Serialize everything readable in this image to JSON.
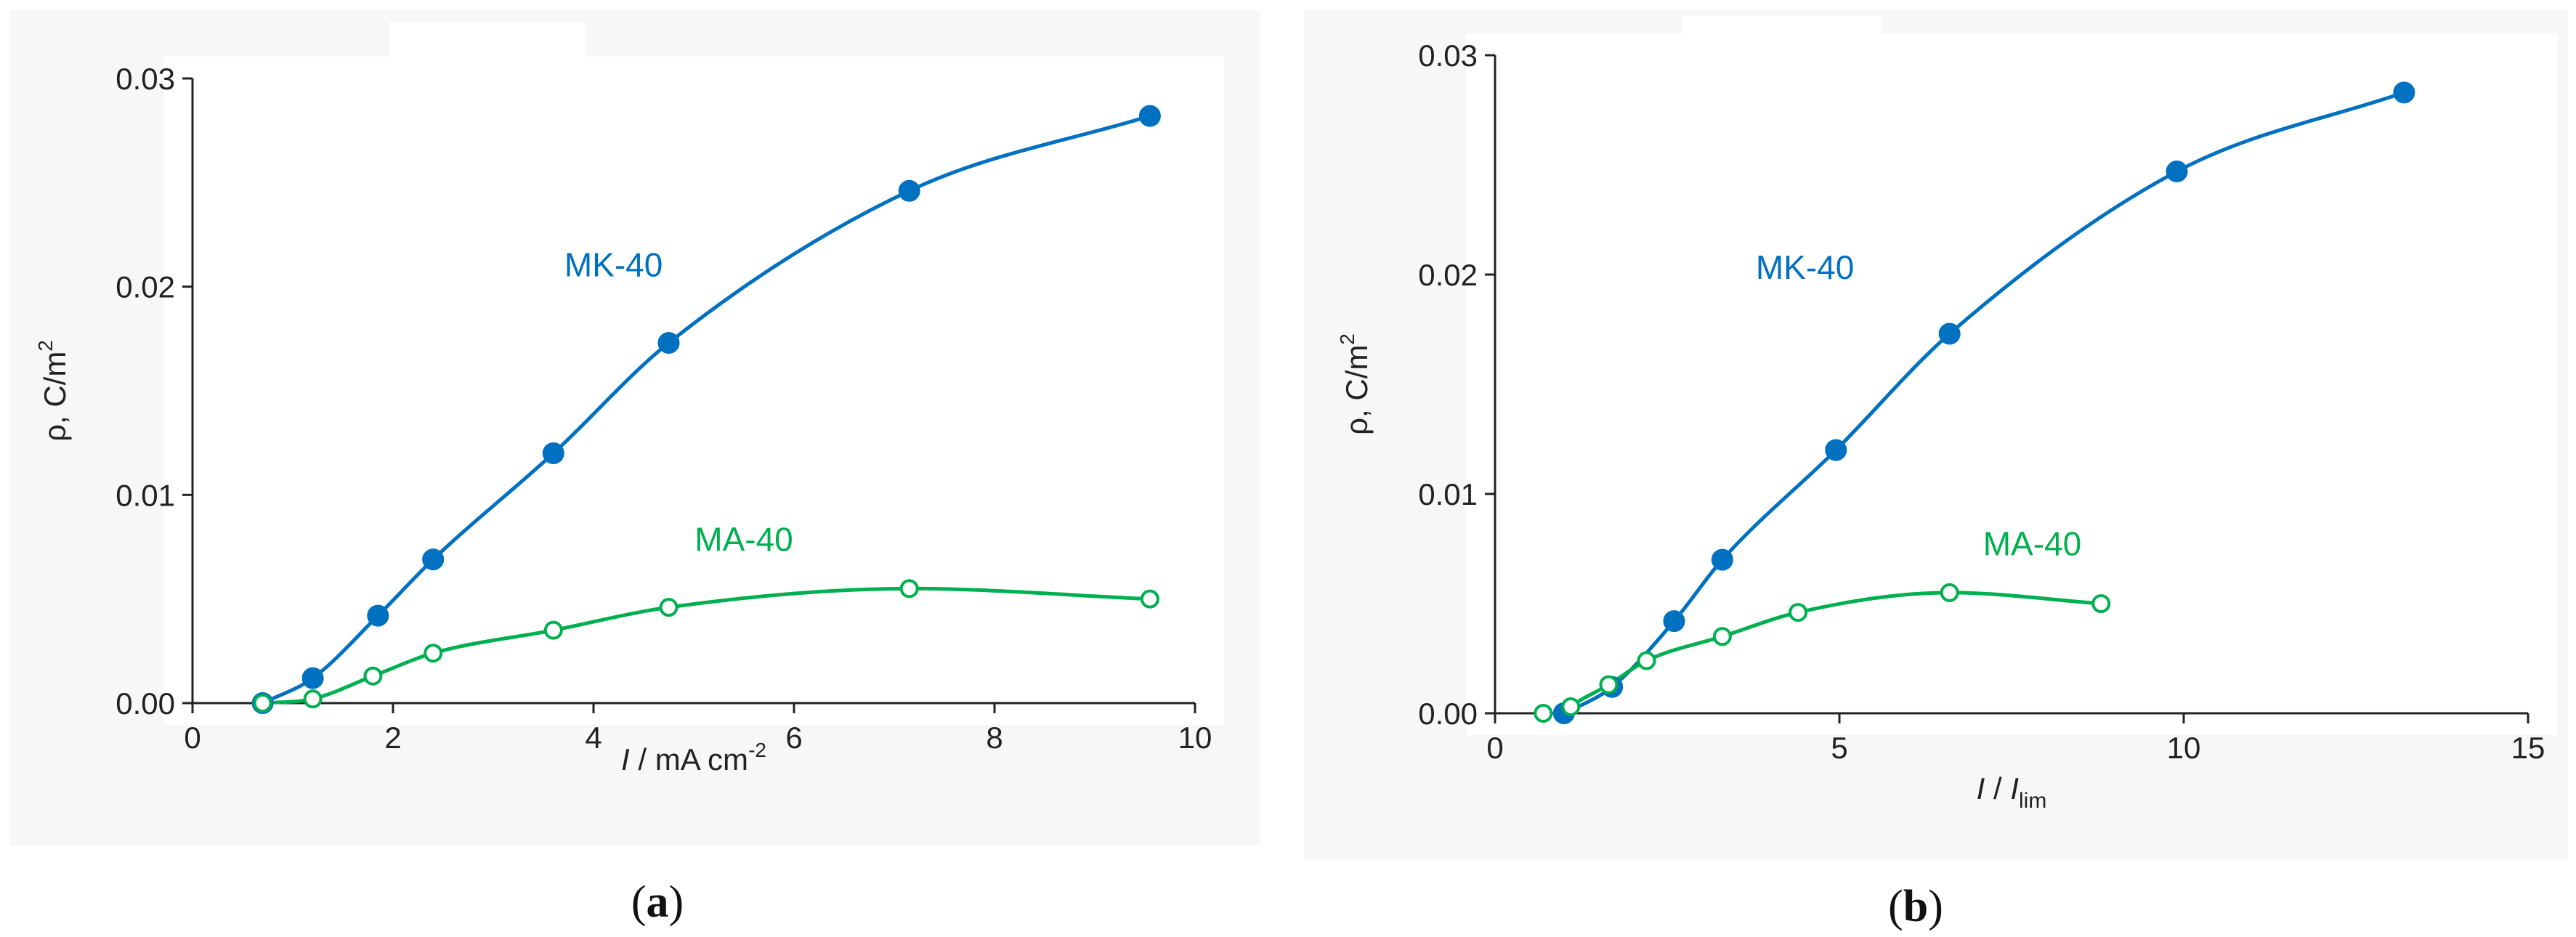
{
  "chart_data": [
    {
      "type": "line",
      "panel_label_open": "(",
      "panel_label_letter": "a",
      "panel_label_close": ")",
      "xlabel": {
        "italic": "I",
        "text": " / mA cm",
        "sup": "-2",
        "sub": ""
      },
      "ylabel": {
        "text": "ρ, C/m",
        "sup": "2"
      },
      "xlim": [
        0,
        10
      ],
      "ylim": [
        0,
        0.03
      ],
      "x_ticks": [
        0,
        2,
        4,
        6,
        8,
        10
      ],
      "x_tick_labels": [
        "0",
        "2",
        "4",
        "6",
        "8",
        "10"
      ],
      "y_ticks": [
        0,
        0.01,
        0.02,
        0.03
      ],
      "y_tick_labels": [
        "0.00",
        "0.01",
        "0.02",
        "0.03"
      ],
      "grid": false,
      "series": [
        {
          "name": "MK-40",
          "color": "#0070c0",
          "marker": "filled-circle",
          "label_at": [
            4.2,
            0.0205
          ],
          "x": [
            0.7,
            1.2,
            1.85,
            2.4,
            3.6,
            4.75,
            7.15,
            9.55
          ],
          "y": [
            0.0,
            0.0012,
            0.0042,
            0.0069,
            0.012,
            0.0173,
            0.0246,
            0.0282
          ]
        },
        {
          "name": "MA-40",
          "color": "#00b050",
          "marker": "open-circle",
          "label_at": [
            5.5,
            0.0073
          ],
          "x": [
            0.7,
            1.2,
            1.8,
            2.4,
            3.6,
            4.75,
            7.15,
            9.55
          ],
          "y": [
            0.0,
            0.0002,
            0.0013,
            0.0024,
            0.0035,
            0.0046,
            0.0055,
            0.005
          ]
        }
      ]
    },
    {
      "type": "line",
      "panel_label_open": "(",
      "panel_label_letter": "b",
      "panel_label_close": ")",
      "xlabel": {
        "italic": "I",
        "text": " / ",
        "sup": "",
        "sub": "lim",
        "italic2": "I"
      },
      "ylabel": {
        "text": "ρ, C/m",
        "sup": "2"
      },
      "xlim": [
        0,
        15
      ],
      "ylim": [
        0,
        0.03
      ],
      "x_ticks": [
        0,
        5,
        10,
        15
      ],
      "x_tick_labels": [
        "0",
        "5",
        "10",
        "15"
      ],
      "y_ticks": [
        0,
        0.01,
        0.02,
        0.03
      ],
      "y_tick_labels": [
        "0.00",
        "0.01",
        "0.02",
        "0.03"
      ],
      "grid": false,
      "series": [
        {
          "name": "MK-40",
          "color": "#0070c0",
          "marker": "filled-circle",
          "label_at": [
            4.5,
            0.0198
          ],
          "x": [
            1.0,
            1.7,
            2.6,
            3.3,
            4.95,
            6.6,
            9.9,
            13.2
          ],
          "y": [
            0.0,
            0.0012,
            0.0042,
            0.007,
            0.012,
            0.0173,
            0.0247,
            0.0283
          ],
          "curve_start": [
            1.02,
            0.0
          ]
        },
        {
          "name": "MA-40",
          "color": "#00b050",
          "marker": "open-circle",
          "label_at": [
            7.8,
            0.0072
          ],
          "x": [
            0.7,
            1.1,
            1.65,
            2.2,
            3.3,
            4.4,
            6.6,
            8.8
          ],
          "y": [
            0.0,
            0.0003,
            0.0013,
            0.0024,
            0.0035,
            0.0046,
            0.0055,
            0.005
          ],
          "curve_start": [
            1.0,
            0.0
          ]
        }
      ]
    }
  ]
}
